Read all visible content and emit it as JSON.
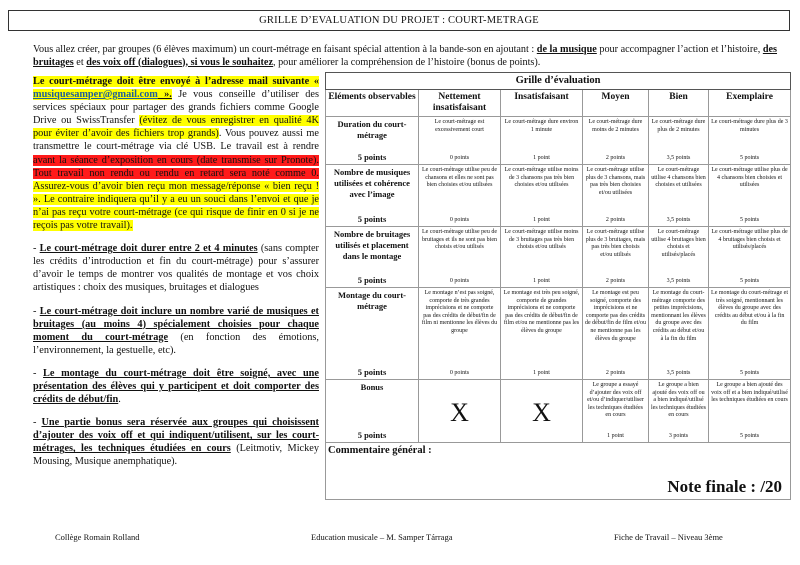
{
  "title": "GRILLE D’EVALUATION DU PROJET : COURT-METRAGE",
  "intro": {
    "t1": "Vous allez créer, par groupes (6 élèves maximum) un court-métrage en faisant spécial attention à la bande-son en ajoutant : ",
    "b1": "de la musique",
    "t2": " pour accompagner l’action et l’histoire, ",
    "b2": "des bruitages",
    "t3": " et ",
    "b3": "des voix off (dialogues), si vous le souhaitez",
    "t4": ", pour améliorer la compréhension de l’histoire (bonus de points)."
  },
  "left": {
    "p1": {
      "a": "Le court-métrage doit être envoyé à l’adresse mail suivante « ",
      "mail": "musiquesamper@gmail.com",
      "b": " ».",
      "c": " Je vous conseille d’utiliser des services spéciaux pour partager des grands fichiers comme Google Drive ou SwissTransfer ",
      "d": "(évitez de vous enregistrer en qualité 4K pour éviter d’avoir des fichiers trop grands)",
      "e": ". Vous pouvez aussi me transmettre le court-métrage via clé USB. Le travail est à rendre ",
      "f": "avant la séance d’exposition en cours (date transmise sur Pronote). Tout travail non rendu ou rendu en retard sera noté comme 0.",
      "g": " Assurez-vous d’avoir bien reçu mon message/réponse « bien reçu ! ». Le contraire indiquera qu’il y a eu un souci dans l’envoi et que je n’ai pas reçu votre court-métrage (ce qui risque de finir en 0 si je ne reçois pas votre travail)."
    },
    "p2": {
      "a": "- ",
      "b": "Le court-métrage doit durer entre 2 et 4 minutes",
      "c": " (sans compter les crédits d’introduction et fin du court-métrage) pour s’assurer d’avoir le temps de montrer vos qualités de montage et vos choix artistiques : choix des musiques, bruitages et dialogues"
    },
    "p3": {
      "a": "- ",
      "b": "Le court-métrage doit inclure un nombre varié de musiques et bruitages (au moins 4) spécialement choisies pour chaque moment du court-métrage",
      "c": " (en fonction des émotions, l’environnement, la gestuelle, etc)."
    },
    "p4": {
      "a": "- ",
      "b": "Le montage du court-métrage doit être soigné, avec une présentation des élèves qui y participent et doit comporter des crédits de début/fin",
      "c": "."
    },
    "p5": {
      "a": "- ",
      "b": "Une partie bonus sera réservée aux groupes qui choisissent d’ajouter des voix off et qui indiquent/utilisent, sur les court-métrages, les techniques étudiées en cours",
      "c": " (Leitmotiv, Mickey Mousing, Musique anemphatique)."
    }
  },
  "grid": {
    "caption": "Grille d’évaluation",
    "headers": [
      "Eléments observables",
      "Nettement insatisfaisant",
      "Insatisfaisant",
      "Moyen",
      "Bien",
      "Exemplaire"
    ],
    "rows": [
      {
        "crit": "Duration du court-métrage",
        "pts": "5 points",
        "cells": [
          [
            "Le court-métrage est excessivement court",
            "0 points"
          ],
          [
            "Le court-métrage dure environ 1 minute",
            "1 point"
          ],
          [
            "Le court-métrage dure moins de 2 minutes",
            "2 points"
          ],
          [
            "Le court-métrage dure plus de 2 minutes",
            "3,5 points"
          ],
          [
            "Le court-métrage dure plus de 3 minutes",
            "5 points"
          ]
        ]
      },
      {
        "crit": "Nombre de musiques utilisées et cohérence avec l’image",
        "pts": "5 points",
        "cells": [
          [
            "Le court-métrage utilise peu de chansons et elles ne sont pas bien choisies et/ou utilisées",
            "0 points"
          ],
          [
            "Le court-métrage utilise moins de 3 chansons pas très bien choisies et/ou utilisées",
            "1 point"
          ],
          [
            "Le court-métrage utilise plus de 3 chansons, mais pas très bien choisies et/ou utilisées",
            "2 points"
          ],
          [
            "Le court-métrage utilise 4 chansons bien choisies et utilisées",
            "3,5 points"
          ],
          [
            "Le court-métrage utilise plus de 4 chansons bien choisies et utilisées",
            "5 points"
          ]
        ]
      },
      {
        "crit": "Nombre de bruitages utilisés et placement dans le montage",
        "pts": "5 points",
        "cells": [
          [
            "Le court-métrage utilise peu de bruitages et ils ne sont pas bien choisis et/ou utilisés",
            "0 points"
          ],
          [
            "Le court-métrage utilise moins de 3 bruitages pas très bien choisis et/ou utilisés",
            "1 point"
          ],
          [
            "Le court-métrage utilise plus de 3 bruitages, mais pas très bien choisis et/ou utilisés",
            "2 points"
          ],
          [
            "Le court-métrage utilise 4 bruitages bien choisis et utilisés/placés",
            "3,5 points"
          ],
          [
            "Le court-métrage utilise plus de 4 bruitages bien choisis et utilisés/placés",
            "5 points"
          ]
        ]
      },
      {
        "crit": "Montage du court-métrage",
        "pts": "5 points",
        "cells": [
          [
            "Le montage n’est pas soigné, comporte de très grandes imprécisions et ne comporte pas des crédits de début/fin de film ni mentionne les élèves du groupe",
            "0 points"
          ],
          [
            "Le montage est très peu soigné, comporte de grandes imprécisions et ne comporte pas des crédits de début/fin de film et/ou ne mentionne pas les élèves du groupe",
            "1 point"
          ],
          [
            "Le montage est peu soigné, comporte des imprécisions et ne comporte pas des crédits de début/fin de film et/ou ne mentionne pas les élèves du groupe",
            "2 points"
          ],
          [
            "Le montage du court-métrage comporte des petites imprécisions, mentionnant les élèves du groupe avec des crédits au début et/ou à la fin du film",
            "3,5 points"
          ],
          [
            "Le montage du court-métrage et très soigné, mentionnant les élèves du groupe avec des crédits au début et/ou à la fin du film",
            "5 points"
          ]
        ]
      },
      {
        "crit": "Bonus",
        "pts": "5 points",
        "cells": [
          [
            "X",
            ""
          ],
          [
            "X",
            ""
          ],
          [
            "Le groupe a essayé d’ajouter des voix off et/ou d’indiquer/utiliser les techniques étudiées en cours",
            "1 point"
          ],
          [
            "Le groupe a bien ajouté des voix off ou a bien indiqué/utilisé les techniques étudiées en cours",
            "3 points"
          ],
          [
            "Le groupe a bien ajouté des voix off et a bien indiqué/utilisé les techniques étudiées en cours",
            "5 points"
          ]
        ]
      }
    ],
    "comment": "Commentaire général :",
    "note": "Note finale : /20"
  },
  "footer": {
    "school": "Collège Romain Rolland",
    "subject": "Education musicale – M. Samper Tárraga",
    "sheet": "Fiche de Travail  – Niveau 3ème"
  },
  "colors": {
    "highlight_yellow": "#ffff00",
    "highlight_red": "#ff1a1a",
    "link": "#1f5f9a"
  }
}
